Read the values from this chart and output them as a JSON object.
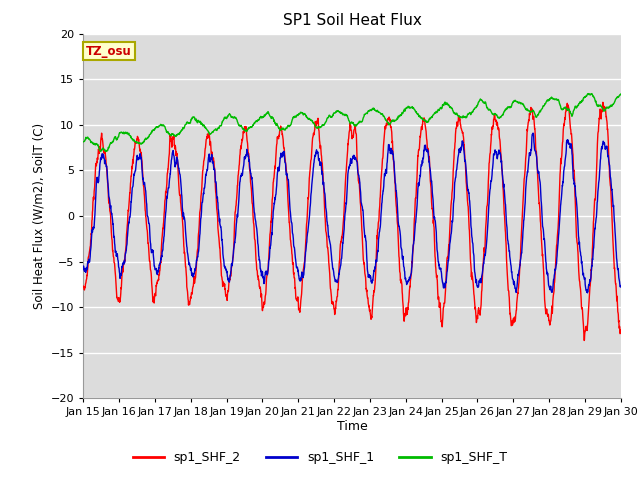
{
  "title": "SP1 Soil Heat Flux",
  "xlabel": "Time",
  "ylabel": "Soil Heat Flux (W/m2), SoilT (C)",
  "ylim": [
    -20,
    20
  ],
  "xlim_days": [
    15,
    30
  ],
  "x_tick_labels": [
    "Jan 15",
    "Jan 16",
    "Jan 17",
    "Jan 18",
    "Jan 19",
    "Jan 20",
    "Jan 21",
    "Jan 22",
    "Jan 23",
    "Jan 24",
    "Jan 25",
    "Jan 26",
    "Jan 27",
    "Jan 28",
    "Jan 29",
    "Jan 30"
  ],
  "bg_color": "#dcdcdc",
  "fig_color": "#ffffff",
  "grid_color": "#ffffff",
  "tz_label": "TZ_osu",
  "tz_box_color": "#ffffcc",
  "tz_text_color": "#cc0000",
  "tz_edge_color": "#aaa800",
  "line_colors": {
    "sp1_SHF_2": "#ff0000",
    "sp1_SHF_1": "#0000cc",
    "sp1_SHF_T": "#00bb00"
  },
  "line_width": 1.0,
  "legend_labels": [
    "sp1_SHF_2",
    "sp1_SHF_1",
    "sp1_SHF_T"
  ]
}
